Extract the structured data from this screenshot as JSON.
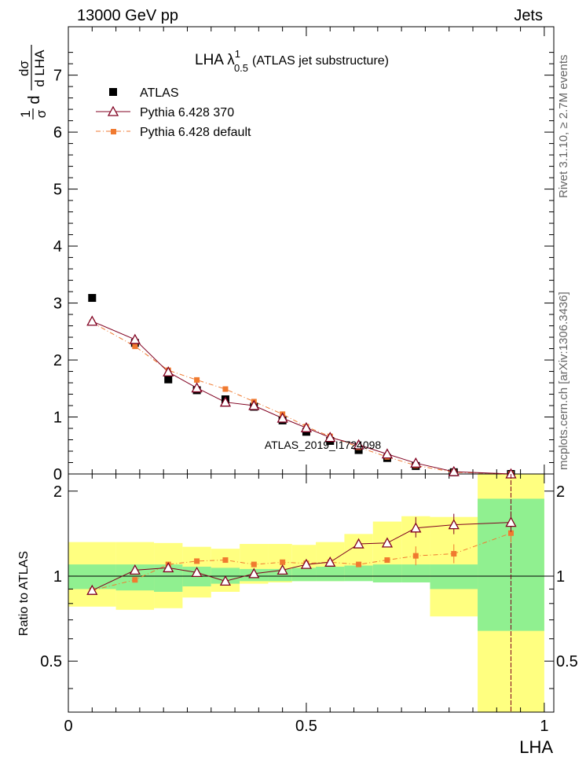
{
  "header": {
    "left_label": "13000 GeV pp",
    "right_label": "Jets"
  },
  "side_labels": {
    "rivet": "Rivet 3.1.10, ≥ 2.7M events",
    "mcplots": "mcplots.cern.ch [arXiv:1306.3436]"
  },
  "watermark": "ATLAS_2019_I1724098",
  "chart_data": [
    {
      "type": "scatter",
      "panel": "main",
      "title": "LHA λ",
      "title_sup": "1",
      "title_sub": "0.5",
      "title_suffix": "(ATLAS jet substructure)",
      "ylabel": "dσ/dLHA · 1/σ",
      "ylabel_parts": {
        "frac1_num": "1",
        "frac1_den": "σ",
        "frac2_num": "dσ",
        "frac2_den": "d LHA",
        "prefix": "d"
      },
      "xlim": [
        0,
        1.02
      ],
      "ylim": [
        0,
        7.85
      ],
      "yticks": [
        "0",
        "1",
        "2",
        "3",
        "4",
        "5",
        "6",
        "7"
      ],
      "legend": [
        {
          "name": "ATLAS",
          "marker": "square",
          "color": "#000000"
        },
        {
          "name": "Pythia 6.428 370",
          "marker": "triangle",
          "color": "#800020"
        },
        {
          "name": "Pythia 6.428 default",
          "marker": "square-small",
          "color": "#f07a30"
        }
      ],
      "series": [
        {
          "name": "ATLAS",
          "x": [
            0.05,
            0.14,
            0.21,
            0.27,
            0.33,
            0.39,
            0.45,
            0.5,
            0.55,
            0.61,
            0.67,
            0.73,
            0.81,
            0.93
          ],
          "y": [
            3.09,
            2.3,
            1.66,
            1.47,
            1.31,
            1.18,
            0.94,
            0.74,
            0.58,
            0.42,
            0.28,
            0.14,
            0.03,
            0.0
          ]
        },
        {
          "name": "Pythia 6.428 370",
          "x": [
            0.05,
            0.14,
            0.21,
            0.27,
            0.33,
            0.39,
            0.45,
            0.5,
            0.55,
            0.61,
            0.67,
            0.73,
            0.81,
            0.93
          ],
          "y": [
            2.68,
            2.36,
            1.79,
            1.51,
            1.26,
            1.2,
            0.98,
            0.81,
            0.64,
            0.51,
            0.35,
            0.19,
            0.04,
            0.0
          ]
        },
        {
          "name": "Pythia 6.428 default",
          "x": [
            0.05,
            0.14,
            0.21,
            0.27,
            0.33,
            0.39,
            0.45,
            0.5,
            0.55,
            0.61,
            0.67,
            0.73,
            0.81,
            0.93
          ],
          "y": [
            2.66,
            2.24,
            1.82,
            1.65,
            1.49,
            1.27,
            1.05,
            0.83,
            0.66,
            0.47,
            0.3,
            0.15,
            0.03,
            0.0
          ]
        }
      ]
    },
    {
      "type": "line",
      "panel": "ratio",
      "ylabel": "Ratio to ATLAS",
      "xlabel": "LHA",
      "xlim": [
        0,
        1.02
      ],
      "ylim": [
        0.33,
        2.3
      ],
      "xticks": [
        "0",
        "0.5",
        "1"
      ],
      "yticks_left": [
        "0.5",
        "1",
        "2"
      ],
      "yticks_right": [
        "0.5",
        "1",
        "2"
      ],
      "bands": [
        {
          "x0": 0.0,
          "x1": 0.1,
          "g": [
            0.9,
            1.1
          ],
          "y": [
            0.78,
            1.32
          ]
        },
        {
          "x0": 0.1,
          "x1": 0.18,
          "g": [
            0.89,
            1.1
          ],
          "y": [
            0.76,
            1.32
          ]
        },
        {
          "x0": 0.18,
          "x1": 0.24,
          "g": [
            0.88,
            1.1
          ],
          "y": [
            0.77,
            1.31
          ]
        },
        {
          "x0": 0.24,
          "x1": 0.3,
          "g": [
            0.92,
            1.08
          ],
          "y": [
            0.84,
            1.27
          ]
        },
        {
          "x0": 0.3,
          "x1": 0.36,
          "g": [
            0.94,
            1.07
          ],
          "y": [
            0.88,
            1.25
          ]
        },
        {
          "x0": 0.36,
          "x1": 0.42,
          "g": [
            0.96,
            1.06
          ],
          "y": [
            0.94,
            1.3
          ]
        },
        {
          "x0": 0.42,
          "x1": 0.47,
          "g": [
            0.96,
            1.06
          ],
          "y": [
            0.95,
            1.3
          ]
        },
        {
          "x0": 0.47,
          "x1": 0.52,
          "g": [
            0.96,
            1.07
          ],
          "y": [
            0.96,
            1.29
          ]
        },
        {
          "x0": 0.52,
          "x1": 0.58,
          "g": [
            0.96,
            1.08
          ],
          "y": [
            0.96,
            1.32
          ]
        },
        {
          "x0": 0.58,
          "x1": 0.64,
          "g": [
            0.96,
            1.09
          ],
          "y": [
            0.97,
            1.41
          ]
        },
        {
          "x0": 0.64,
          "x1": 0.7,
          "g": [
            0.95,
            1.1
          ],
          "y": [
            0.97,
            1.56
          ]
        },
        {
          "x0": 0.7,
          "x1": 0.76,
          "g": [
            0.95,
            1.1
          ],
          "y": [
            0.97,
            1.63
          ]
        },
        {
          "x0": 0.76,
          "x1": 0.86,
          "g": [
            0.9,
            1.1
          ],
          "y": [
            0.72,
            1.62
          ]
        },
        {
          "x0": 0.86,
          "x1": 1.0,
          "g": [
            0.64,
            1.88
          ],
          "y": [
            0.33,
            2.3
          ]
        }
      ],
      "series": [
        {
          "name": "Pythia 6.428 370",
          "x": [
            0.05,
            0.14,
            0.21,
            0.27,
            0.33,
            0.39,
            0.45,
            0.5,
            0.55,
            0.61,
            0.67,
            0.73,
            0.81,
            0.93
          ],
          "y": [
            0.89,
            1.05,
            1.07,
            1.03,
            0.96,
            1.02,
            1.05,
            1.1,
            1.12,
            1.3,
            1.31,
            1.48,
            1.52,
            1.55
          ]
        },
        {
          "name": "Pythia 6.428 default",
          "x": [
            0.05,
            0.14,
            0.21,
            0.27,
            0.33,
            0.39,
            0.45,
            0.5,
            0.55,
            0.61,
            0.67,
            0.73,
            0.81,
            0.93
          ],
          "y": [
            0.89,
            0.97,
            1.1,
            1.13,
            1.14,
            1.1,
            1.12,
            1.11,
            1.12,
            1.1,
            1.14,
            1.18,
            1.2,
            1.42
          ]
        }
      ]
    }
  ]
}
